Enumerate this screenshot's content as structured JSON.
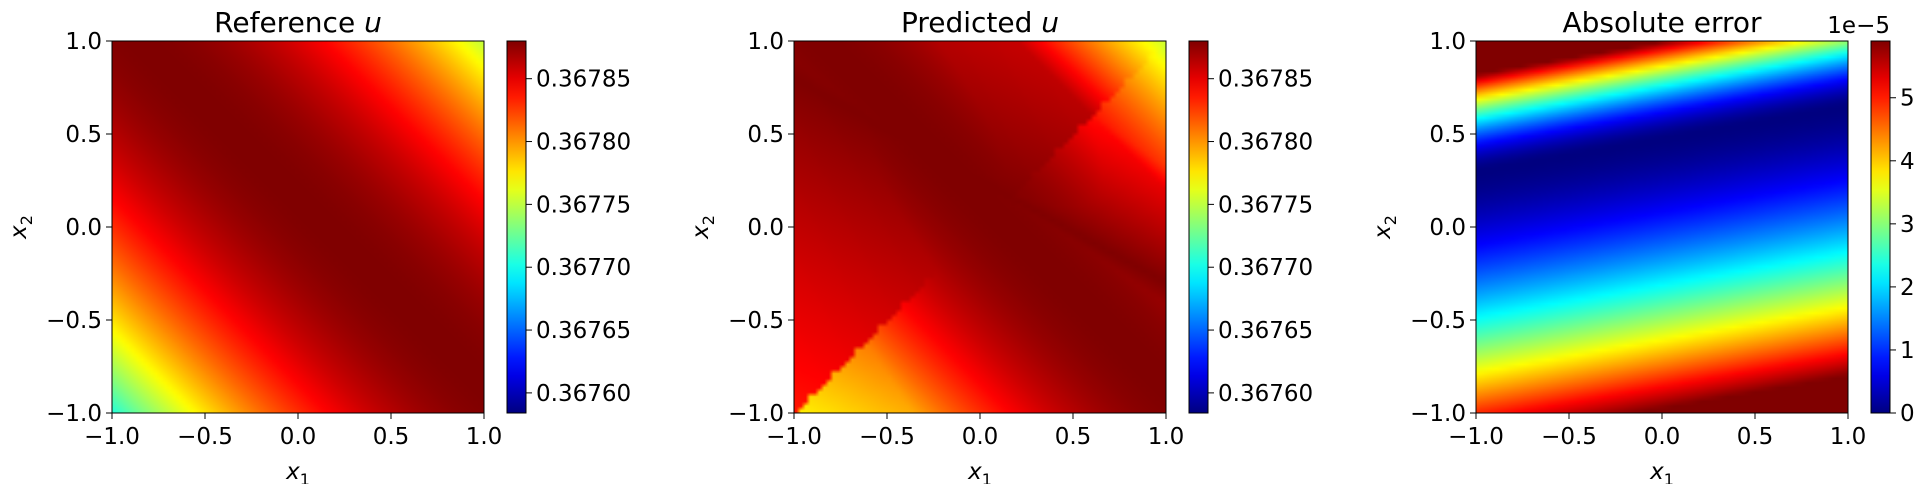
{
  "chart_data": [
    {
      "type": "heatmap",
      "title": "Reference u",
      "title_text": "Reference ",
      "title_var": "u",
      "xlabel": "x1",
      "xlabel_base": "x",
      "xlabel_sub": "1",
      "ylabel": "x2",
      "ylabel_base": "x",
      "ylabel_sub": "2",
      "xlim": [
        -1.0,
        1.0
      ],
      "ylim": [
        -1.0,
        1.0
      ],
      "xticks": [
        -1.0,
        -0.5,
        0.0,
        0.5,
        1.0
      ],
      "yticks": [
        -1.0,
        -0.5,
        0.0,
        0.5,
        1.0
      ],
      "xtick_labels": [
        "−1.0",
        "−0.5",
        "0.0",
        "0.5",
        "1.0"
      ],
      "ytick_labels": [
        "−1.0",
        "−0.5",
        "0.0",
        "0.5",
        "1.0"
      ],
      "colormap": "jet",
      "colorbar": {
        "range": [
          0.367584,
          0.36788
        ],
        "ticks": [
          0.3676,
          0.36765,
          0.3677,
          0.36775,
          0.3678,
          0.36785
        ],
        "tick_labels": [
          "0.36760",
          "0.36765",
          "0.36770",
          "0.36775",
          "0.36780",
          "0.36785"
        ],
        "offset_label": ""
      },
      "field": {
        "description_values": "u(x1,x2) max 0.36788 along diagonal x1+x2=0.15, decreasing quadratically with distance; corners (1,1) and (-1,-1) at minimum",
        "form": "ridge",
        "peak": 0.36788,
        "ridge_offset": 0.15,
        "curvature": 7.6e-05,
        "floor": 0.367584
      }
    },
    {
      "type": "heatmap",
      "title": "Predicted u",
      "title_text": "Predicted ",
      "title_var": "u",
      "xlabel": "x1",
      "xlabel_base": "x",
      "xlabel_sub": "1",
      "ylabel": "x2",
      "ylabel_base": "x",
      "ylabel_sub": "2",
      "xlim": [
        -1.0,
        1.0
      ],
      "ylim": [
        -1.0,
        1.0
      ],
      "xticks": [
        -1.0,
        -0.5,
        0.0,
        0.5,
        1.0
      ],
      "yticks": [
        -1.0,
        -0.5,
        0.0,
        0.5,
        1.0
      ],
      "xtick_labels": [
        "−1.0",
        "−0.5",
        "0.0",
        "0.5",
        "1.0"
      ],
      "ytick_labels": [
        "−1.0",
        "−0.5",
        "0.0",
        "0.5",
        "1.0"
      ],
      "colormap": "jet",
      "colorbar": {
        "range": [
          0.367584,
          0.36788
        ],
        "ticks": [
          0.3676,
          0.36765,
          0.3677,
          0.36775,
          0.3678,
          0.36785
        ],
        "tick_labels": [
          "0.36760",
          "0.36765",
          "0.36770",
          "0.36775",
          "0.36780",
          "0.36785"
        ],
        "offset_label": ""
      },
      "field": {
        "form": "reference_plus_error",
        "peak": 0.36788,
        "ridge_offset": 0.15,
        "curvature": 7.6e-05,
        "floor": 0.367584
      }
    },
    {
      "type": "heatmap",
      "title": "Absolute error",
      "title_text": "Absolute error",
      "title_var": "",
      "xlabel": "x1",
      "xlabel_base": "x",
      "xlabel_sub": "1",
      "ylabel": "x2",
      "ylabel_base": "x",
      "ylabel_sub": "2",
      "xlim": [
        -1.0,
        1.0
      ],
      "ylim": [
        -1.0,
        1.0
      ],
      "xticks": [
        -1.0,
        -0.5,
        0.0,
        0.5,
        1.0
      ],
      "yticks": [
        -1.0,
        -0.5,
        0.0,
        0.5,
        1.0
      ],
      "xtick_labels": [
        "−1.0",
        "−0.5",
        "0.0",
        "0.5",
        "1.0"
      ],
      "ytick_labels": [
        "−1.0",
        "−0.5",
        "0.0",
        "0.5",
        "1.0"
      ],
      "colormap": "jet",
      "colorbar": {
        "range": [
          0.0,
          5.9e-05
        ],
        "ticks": [
          0,
          1e-05,
          2e-05,
          3e-05,
          4e-05,
          5e-05
        ],
        "tick_labels": [
          "0",
          "1",
          "2",
          "3",
          "4",
          "5"
        ],
        "offset_label": "1e−5"
      },
      "field": {
        "form": "error_band",
        "min_value": 0.0,
        "max_value": 5.9e-05,
        "band_center_at_x1_minus1": 0.3,
        "band_center_at_x1_plus1": 0.65,
        "scale_below": 1.45,
        "scale_above": 0.52,
        "value_at_bottom_left": 5.9e-05,
        "value_at_top_left": 3.1e-05
      }
    }
  ]
}
